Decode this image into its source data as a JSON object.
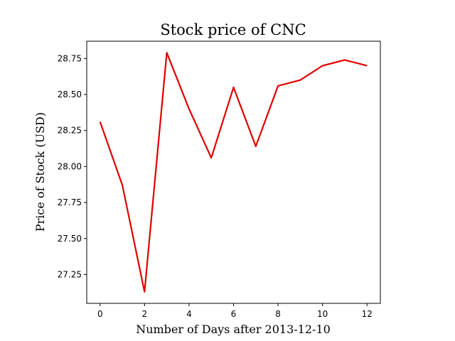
{
  "chart_data": {
    "type": "line",
    "title": "Stock price of CNC",
    "xlabel": "Number of Days after 2013-12-10",
    "ylabel": "Price of Stock (USD)",
    "xlim": [
      -0.6,
      12.6
    ],
    "ylim": [
      27.05,
      28.87
    ],
    "x_ticks": [
      0,
      2,
      4,
      6,
      8,
      10,
      12
    ],
    "y_ticks": [
      27.25,
      27.5,
      27.75,
      28.0,
      28.25,
      28.5,
      28.75
    ],
    "x_tick_labels": [
      "0",
      "2",
      "4",
      "6",
      "8",
      "10",
      "12"
    ],
    "y_tick_labels": [
      "27.25",
      "27.50",
      "27.75",
      "28.00",
      "28.25",
      "28.50",
      "28.75"
    ],
    "grid": false,
    "series": [
      {
        "color": "#e00000",
        "x": [
          0,
          1,
          2,
          3,
          4,
          5,
          6,
          7,
          8,
          9,
          10,
          11,
          12
        ],
        "values": [
          28.31,
          27.87,
          27.13,
          28.79,
          28.4,
          28.06,
          28.55,
          28.14,
          28.56,
          28.6,
          28.7,
          28.74,
          28.7
        ]
      }
    ]
  }
}
